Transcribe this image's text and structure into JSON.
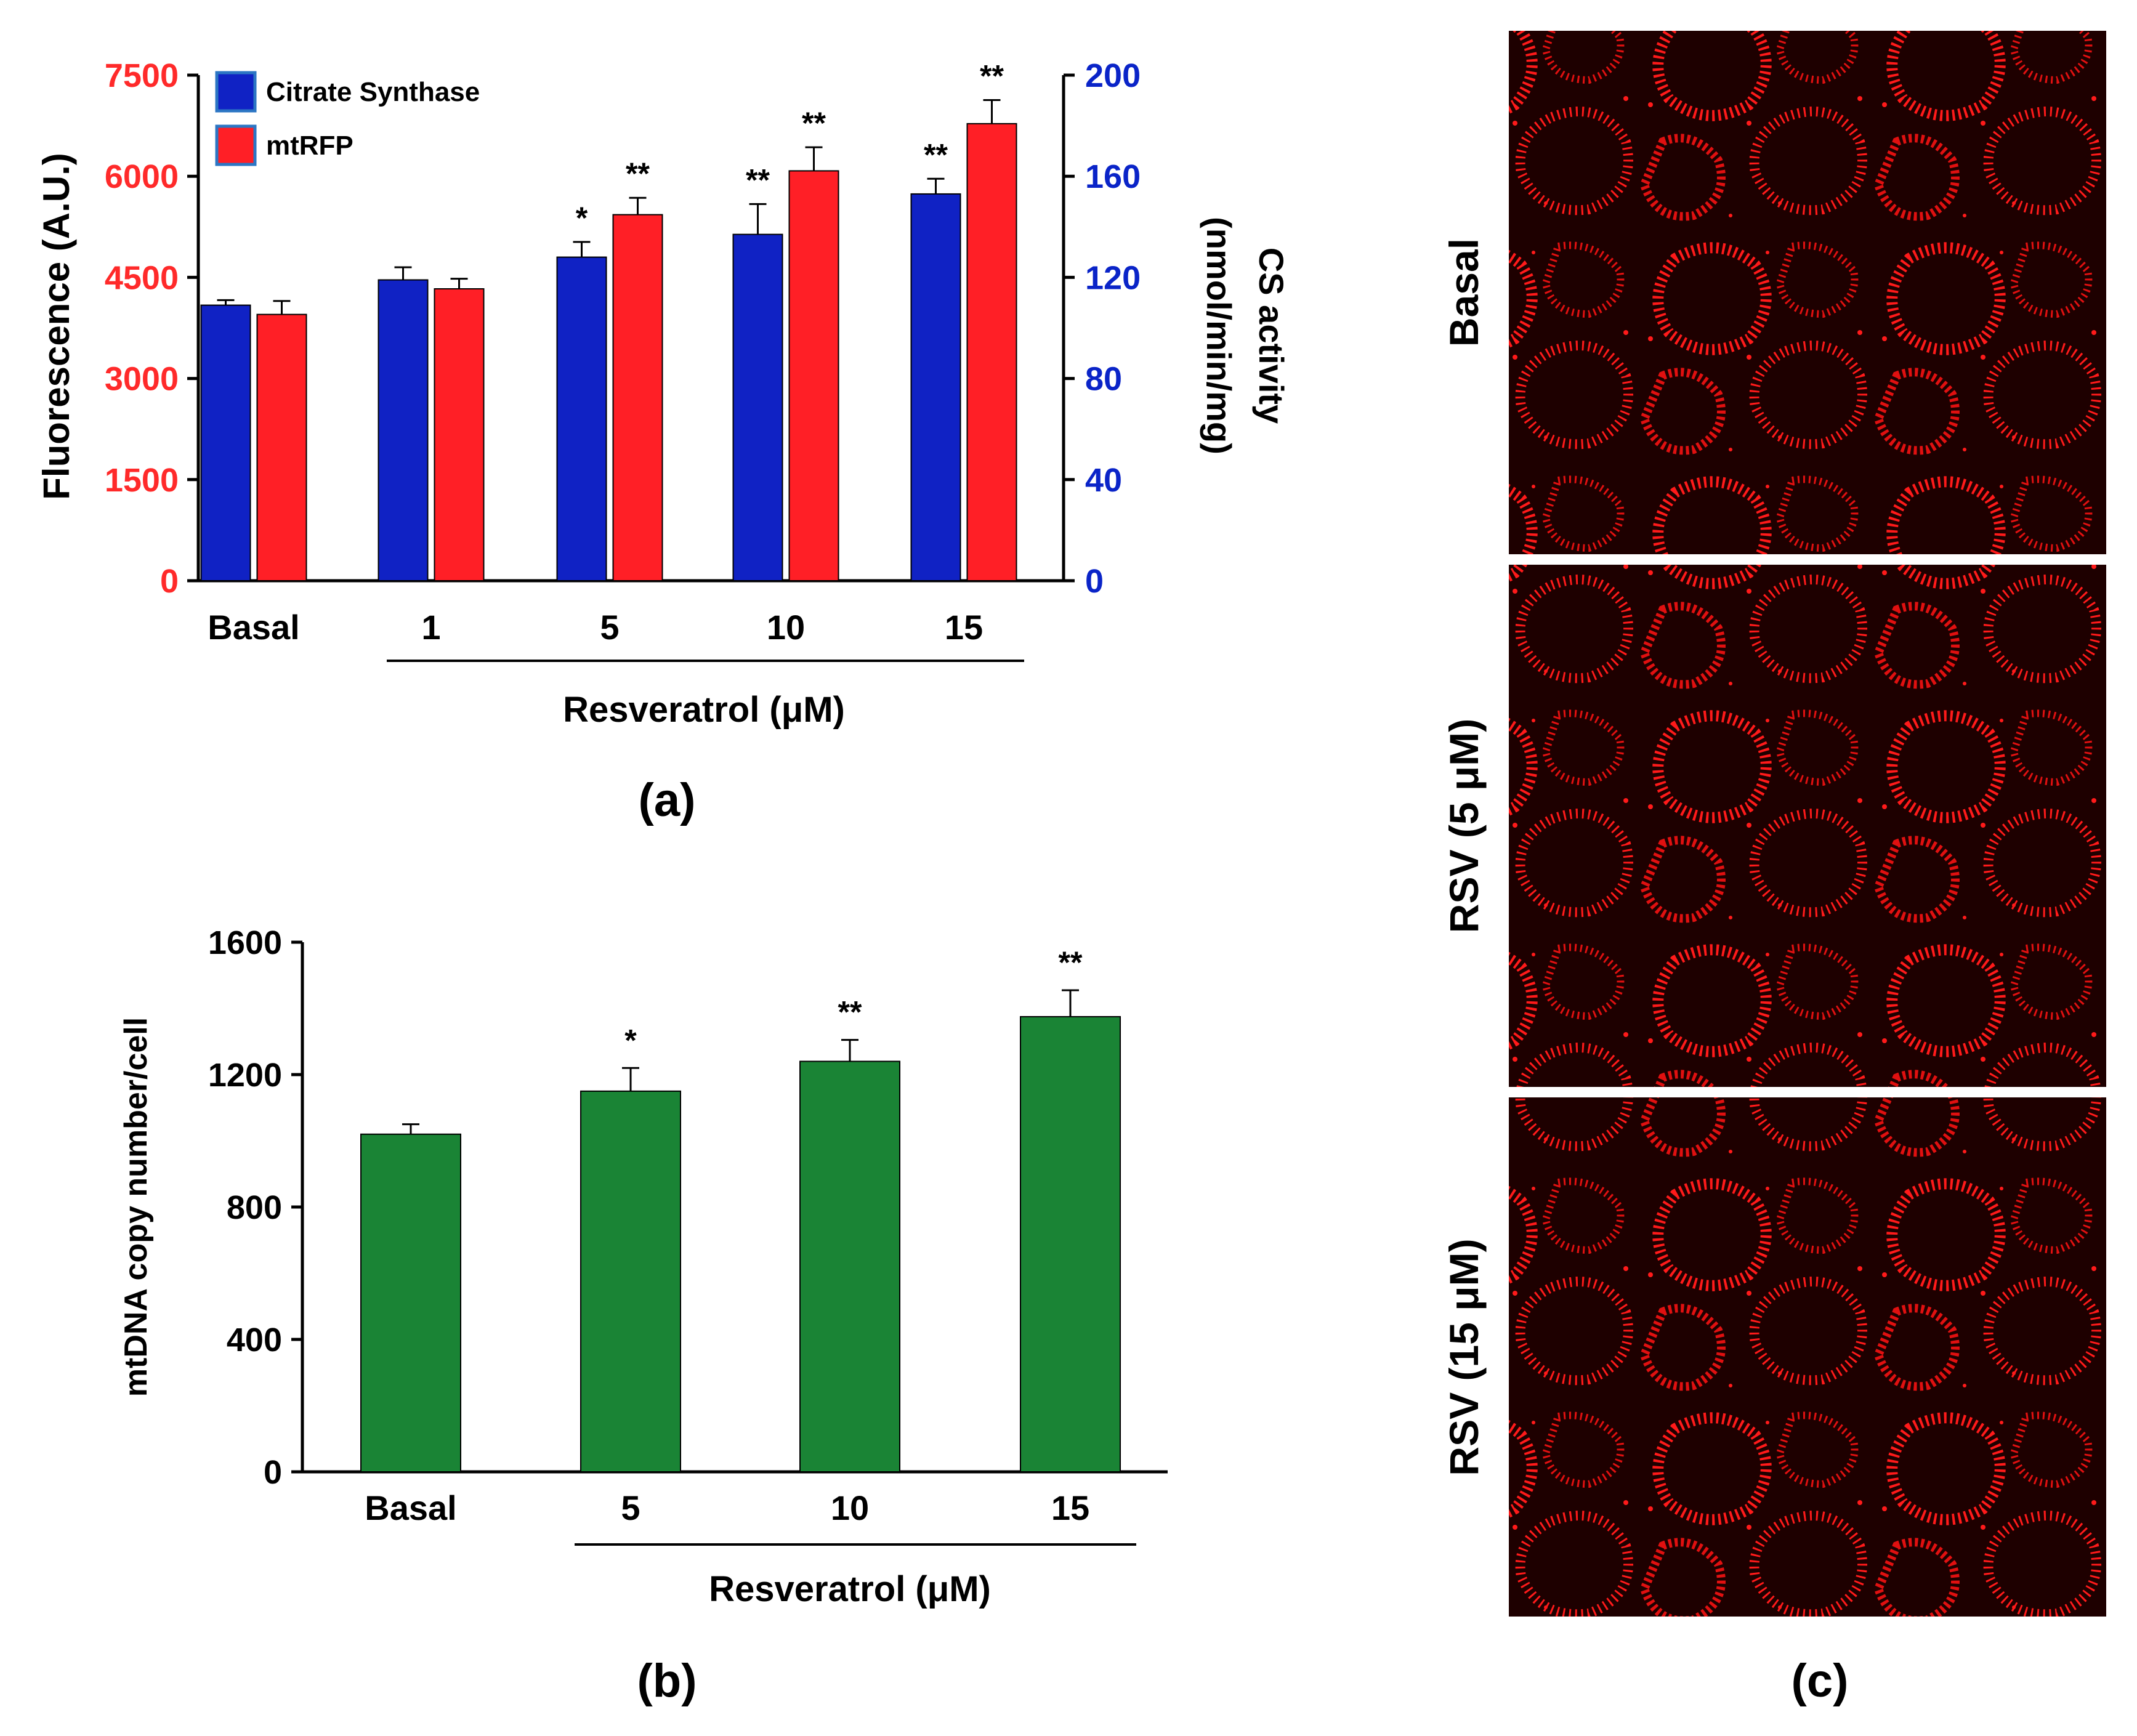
{
  "colors": {
    "citrate_synthase": "#1022C4",
    "mtrfp": "#FF1F26",
    "mtdna": "#1A8435",
    "left_axis": "#FF2A2A",
    "right_axis": "#0A24C8",
    "axis": "#000000",
    "micrograph_bg": "#1E0000",
    "micrograph_signal": "#FF1A1A"
  },
  "chart_data": [
    {
      "panel": "(a)",
      "type": "bar",
      "categories": [
        "Basal",
        "1",
        "5",
        "10",
        "15"
      ],
      "xgroup_label": "Resveratrol (μM)",
      "ylabel": "Fluorescence (A.U.)",
      "ylim": [
        0,
        7500
      ],
      "yticks": [
        "0",
        "1500",
        "3000",
        "4500",
        "6000",
        "7500"
      ],
      "y2label_line1": "CS activity",
      "y2label_line2": "(nmol/min/mg)",
      "y2lim": [
        0,
        200
      ],
      "y2ticks": [
        "0",
        "40",
        "80",
        "120",
        "160",
        "200"
      ],
      "legend_position": "top-left",
      "series": [
        {
          "name": "Citrate Synthase",
          "axis": "right",
          "values": [
            109,
            119,
            128,
            137,
            153
          ],
          "errors": [
            2,
            5,
            6,
            12,
            6
          ],
          "significance": [
            "",
            "",
            "*",
            "**",
            "**"
          ]
        },
        {
          "name": "mtRFP",
          "axis": "left",
          "values": [
            3950,
            4330,
            5430,
            6080,
            6780
          ],
          "errors": [
            200,
            150,
            250,
            350,
            350
          ],
          "significance": [
            "",
            "",
            "**",
            "**",
            "**"
          ]
        }
      ]
    },
    {
      "panel": "(b)",
      "type": "bar",
      "categories": [
        "Basal",
        "5",
        "10",
        "15"
      ],
      "xgroup_label": "Resveratrol (μM)",
      "ylabel": "mtDNA copy number/cell",
      "ylim": [
        0,
        1600
      ],
      "yticks": [
        "0",
        "400",
        "800",
        "1200",
        "1600"
      ],
      "series": [
        {
          "name": "mtDNA copy number/cell",
          "values": [
            1020,
            1150,
            1240,
            1375
          ],
          "errors": [
            30,
            70,
            65,
            80
          ],
          "significance": [
            "",
            "*",
            "**",
            "**"
          ]
        }
      ]
    }
  ],
  "panel_c": {
    "caption": "(c)",
    "images": [
      {
        "label": "Basal"
      },
      {
        "label": "RSV (5 μM)"
      },
      {
        "label": "RSV (15 μM)"
      }
    ]
  }
}
